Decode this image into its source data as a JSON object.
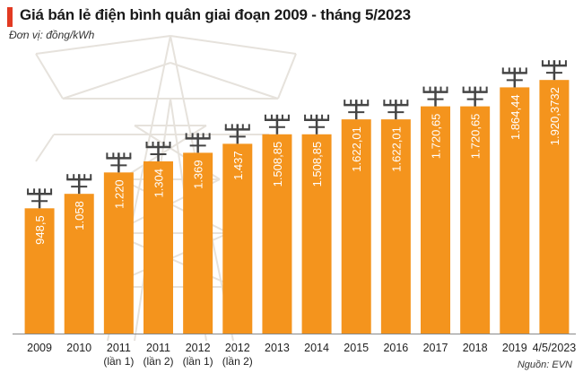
{
  "title": "Giá bán lẻ điện bình quân giai đoạn 2009 - tháng 5/2023",
  "unit": "Đơn vị: đồng/kWh",
  "source": "Nguồn: EVN",
  "colors": {
    "bar": "#f4941d",
    "accent": "#e23a22",
    "tower": "#e6e2dc",
    "pole": "#444444"
  },
  "chart_data": {
    "type": "bar",
    "title": "Giá bán lẻ điện bình quân giai đoạn 2009 - tháng 5/2023",
    "ylabel": "Đơn vị: đồng/kWh",
    "xlabel": "",
    "ylim": [
      0,
      2200
    ],
    "categories": [
      [
        "2009"
      ],
      [
        "2010"
      ],
      [
        "2011",
        "(lần 1)"
      ],
      [
        "2011",
        "(lần 2)"
      ],
      [
        "2012",
        "(lần 1)"
      ],
      [
        "2012",
        "(lần 2)"
      ],
      [
        "2013"
      ],
      [
        "2014"
      ],
      [
        "2015"
      ],
      [
        "2016"
      ],
      [
        "2017"
      ],
      [
        "2018"
      ],
      [
        "2019"
      ],
      [
        "4/5/2023"
      ]
    ],
    "values": [
      948.5,
      1058,
      1220,
      1304,
      1369,
      1437,
      1508.85,
      1508.85,
      1622.01,
      1622.01,
      1720.65,
      1720.65,
      1864.44,
      1920.3732
    ],
    "value_labels": [
      "948,5",
      "1.058",
      "1.220",
      "1.304",
      "1.369",
      "1.437",
      "1.508,85",
      "1.508,85",
      "1.622,01",
      "1.622,01",
      "1.720,65",
      "1.720,65",
      "1.864,44",
      "1.920,3732"
    ]
  }
}
